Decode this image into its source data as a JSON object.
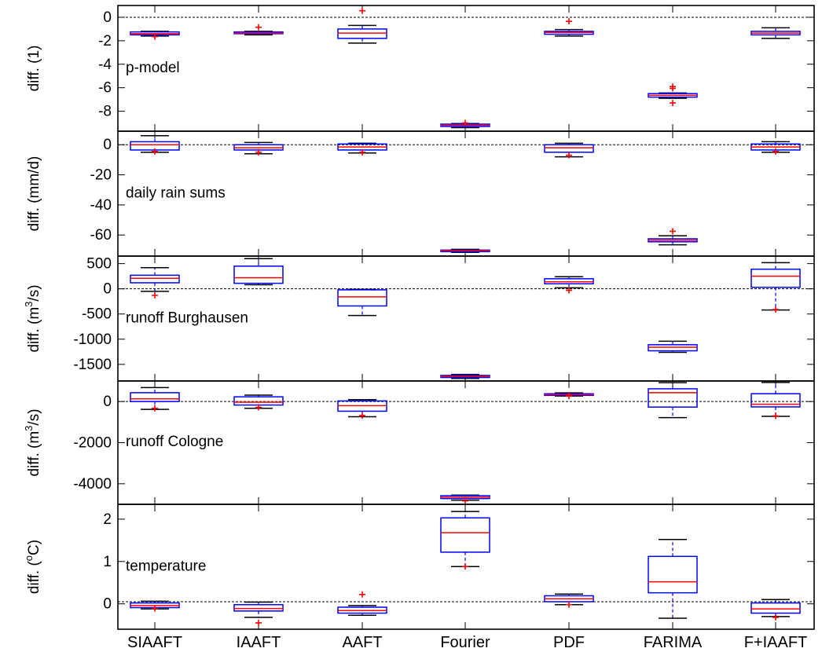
{
  "figure": {
    "categories": [
      "SIAAFT",
      "IAAFT",
      "AAFT",
      "Fourier",
      "PDF",
      "FARIMA",
      "F+IAAFT"
    ],
    "colors": {
      "box": "#0000ff",
      "median": "#ff0000",
      "whisker": "#000000",
      "outlier": "#ff0000",
      "zero_line": "#000000",
      "frame": "#000000"
    }
  },
  "chart_data": [
    {
      "type": "box",
      "annotation": "p-model",
      "ylabel": "diff. (1)",
      "ylim": [
        -9.7,
        1.0
      ],
      "yticks": [
        0,
        -2,
        -4,
        -6,
        -8
      ],
      "zero_line": 0,
      "boxes": [
        {
          "category": "SIAAFT",
          "whisker_low": -1.6,
          "q1": -1.5,
          "median": -1.4,
          "q3": -1.25,
          "whisker_high": -1.2,
          "outliers": [
            -1.65
          ]
        },
        {
          "category": "IAAFT",
          "whisker_low": -1.5,
          "q1": -1.4,
          "median": -1.35,
          "q3": -1.25,
          "whisker_high": -1.2,
          "outliers": [
            -0.85
          ]
        },
        {
          "category": "AAFT",
          "whisker_low": -2.2,
          "q1": -1.8,
          "median": -1.35,
          "q3": -1.0,
          "whisker_high": -0.7,
          "outliers": [
            0.55
          ]
        },
        {
          "category": "Fourier",
          "whisker_low": -9.4,
          "q1": -9.3,
          "median": -9.2,
          "q3": -9.1,
          "whisker_high": -9.05,
          "outliers": [
            -9.0
          ]
        },
        {
          "category": "PDF",
          "whisker_low": -1.6,
          "q1": -1.45,
          "median": -1.3,
          "q3": -1.2,
          "whisker_high": -1.05,
          "outliers": [
            -0.35
          ]
        },
        {
          "category": "FARIMA",
          "whisker_low": -6.9,
          "q1": -6.8,
          "median": -6.65,
          "q3": -6.5,
          "whisker_high": -6.45,
          "outliers": [
            -5.9,
            -6.05,
            -7.3
          ]
        },
        {
          "category": "F+IAAFT",
          "whisker_low": -1.8,
          "q1": -1.5,
          "median": -1.35,
          "q3": -1.2,
          "whisker_high": -0.9,
          "outliers": []
        }
      ]
    },
    {
      "type": "box",
      "annotation": "daily rain sums",
      "ylabel": "diff. (mm/d)",
      "ylim": [
        -74,
        9
      ],
      "yticks": [
        0,
        -20,
        -40,
        -60
      ],
      "zero_line": 0,
      "boxes": [
        {
          "category": "SIAAFT",
          "whisker_low": -5,
          "q1": -3.5,
          "median": 0,
          "q3": 2,
          "whisker_high": 6,
          "outliers": [
            -4.5
          ]
        },
        {
          "category": "IAAFT",
          "whisker_low": -6,
          "q1": -3.5,
          "median": -2,
          "q3": 0,
          "whisker_high": 1.5,
          "outliers": [
            -5
          ]
        },
        {
          "category": "AAFT",
          "whisker_low": -5.5,
          "q1": -3.5,
          "median": -1.5,
          "q3": 0.5,
          "whisker_high": 1,
          "outliers": [
            -5
          ]
        },
        {
          "category": "Fourier",
          "whisker_low": -71.5,
          "q1": -71,
          "median": -70.5,
          "q3": -70,
          "whisker_high": -69.5,
          "outliers": []
        },
        {
          "category": "PDF",
          "whisker_low": -8,
          "q1": -5,
          "median": -2,
          "q3": 0,
          "whisker_high": 1,
          "outliers": [
            -7
          ]
        },
        {
          "category": "FARIMA",
          "whisker_low": -66.5,
          "q1": -64.5,
          "median": -63.5,
          "q3": -62.5,
          "whisker_high": -60.5,
          "outliers": [
            -57.5
          ]
        },
        {
          "category": "F+IAAFT",
          "whisker_low": -5,
          "q1": -3.5,
          "median": -1.5,
          "q3": 0.5,
          "whisker_high": 2,
          "outliers": [
            -4.5
          ]
        }
      ]
    },
    {
      "type": "box",
      "annotation": "runoff Burghausen",
      "ylabel": "diff. (m³/s)",
      "ylabel_parts": [
        "diff. (m",
        "3",
        "/s)"
      ],
      "ylim": [
        -1830,
        650
      ],
      "yticks": [
        500,
        0,
        -500,
        -1000,
        -1500
      ],
      "zero_line": 0,
      "boxes": [
        {
          "category": "SIAAFT",
          "whisker_low": -50,
          "q1": 120,
          "median": 210,
          "q3": 270,
          "whisker_high": 420,
          "outliers": [
            -130
          ]
        },
        {
          "category": "IAAFT",
          "whisker_low": 80,
          "q1": 110,
          "median": 220,
          "q3": 450,
          "whisker_high": 600,
          "outliers": []
        },
        {
          "category": "AAFT",
          "whisker_low": -530,
          "q1": -340,
          "median": -160,
          "q3": -20,
          "whisker_high": -10,
          "outliers": []
        },
        {
          "category": "Fourier",
          "whisker_low": -1780,
          "q1": -1760,
          "median": -1740,
          "q3": -1720,
          "whisker_high": -1700,
          "outliers": []
        },
        {
          "category": "PDF",
          "whisker_low": 20,
          "q1": 100,
          "median": 140,
          "q3": 200,
          "whisker_high": 240,
          "outliers": [
            -30
          ]
        },
        {
          "category": "FARIMA",
          "whisker_low": -1260,
          "q1": -1230,
          "median": -1160,
          "q3": -1110,
          "whisker_high": -1040,
          "outliers": []
        },
        {
          "category": "F+IAAFT",
          "whisker_low": -420,
          "q1": 30,
          "median": 250,
          "q3": 390,
          "whisker_high": 520,
          "outliers": [
            -410
          ]
        }
      ]
    },
    {
      "type": "box",
      "annotation": "runoff Cologne",
      "ylabel": "diff. (m³/s)",
      "ylabel_parts": [
        "diff. (m",
        "3",
        "/s)"
      ],
      "ylim": [
        -5000,
        1000
      ],
      "yticks": [
        0,
        -2000,
        -4000
      ],
      "zero_line": 0,
      "boxes": [
        {
          "category": "SIAAFT",
          "whisker_low": -380,
          "q1": 0,
          "median": 130,
          "q3": 430,
          "whisker_high": 680,
          "outliers": [
            -330
          ]
        },
        {
          "category": "IAAFT",
          "whisker_low": -330,
          "q1": -170,
          "median": -30,
          "q3": 230,
          "whisker_high": 310,
          "outliers": [
            -280
          ]
        },
        {
          "category": "AAFT",
          "whisker_low": -740,
          "q1": -470,
          "median": -200,
          "q3": 30,
          "whisker_high": 90,
          "outliers": [
            -680
          ]
        },
        {
          "category": "Fourier",
          "whisker_low": -4800,
          "q1": -4720,
          "median": -4650,
          "q3": -4580,
          "whisker_high": -4550,
          "outliers": [
            -4830
          ]
        },
        {
          "category": "PDF",
          "whisker_low": 270,
          "q1": 300,
          "median": 340,
          "q3": 380,
          "whisker_high": 420,
          "outliers": [
            270
          ]
        },
        {
          "category": "FARIMA",
          "whisker_low": -780,
          "q1": -270,
          "median": 430,
          "q3": 620,
          "whisker_high": 920,
          "outliers": []
        },
        {
          "category": "F+IAAFT",
          "whisker_low": -720,
          "q1": -260,
          "median": -130,
          "q3": 380,
          "whisker_high": 930,
          "outliers": [
            -700
          ]
        }
      ]
    },
    {
      "type": "box",
      "annotation": "temperature",
      "ylabel": "diff. (°C)",
      "ylabel_parts": [
        "diff. (",
        "o",
        "C)"
      ],
      "ylim": [
        -0.6,
        2.35
      ],
      "yticks": [
        2,
        1,
        0
      ],
      "zero_line": 0.05,
      "boxes": [
        {
          "category": "SIAAFT",
          "whisker_low": -0.12,
          "q1": -0.09,
          "median": -0.04,
          "q3": 0.02,
          "whisker_high": 0.06,
          "outliers": [
            -0.11
          ]
        },
        {
          "category": "IAAFT",
          "whisker_low": -0.32,
          "q1": -0.17,
          "median": -0.11,
          "q3": -0.02,
          "whisker_high": 0.04,
          "outliers": [
            -0.45
          ]
        },
        {
          "category": "AAFT",
          "whisker_low": -0.27,
          "q1": -0.22,
          "median": -0.16,
          "q3": -0.08,
          "whisker_high": -0.04,
          "outliers": [
            0.22
          ]
        },
        {
          "category": "Fourier",
          "whisker_low": 0.88,
          "q1": 1.22,
          "median": 1.68,
          "q3": 2.03,
          "whisker_high": 2.18,
          "outliers": [
            0.88
          ]
        },
        {
          "category": "PDF",
          "whisker_low": -0.02,
          "q1": 0.05,
          "median": 0.12,
          "q3": 0.19,
          "whisker_high": 0.23,
          "outliers": [
            -0.02
          ]
        },
        {
          "category": "FARIMA",
          "whisker_low": -0.34,
          "q1": 0.26,
          "median": 0.52,
          "q3": 1.12,
          "whisker_high": 1.52,
          "outliers": []
        },
        {
          "category": "F+IAAFT",
          "whisker_low": -0.3,
          "q1": -0.22,
          "median": -0.12,
          "q3": 0.02,
          "whisker_high": 0.1,
          "outliers": [
            -0.32
          ]
        }
      ]
    }
  ]
}
